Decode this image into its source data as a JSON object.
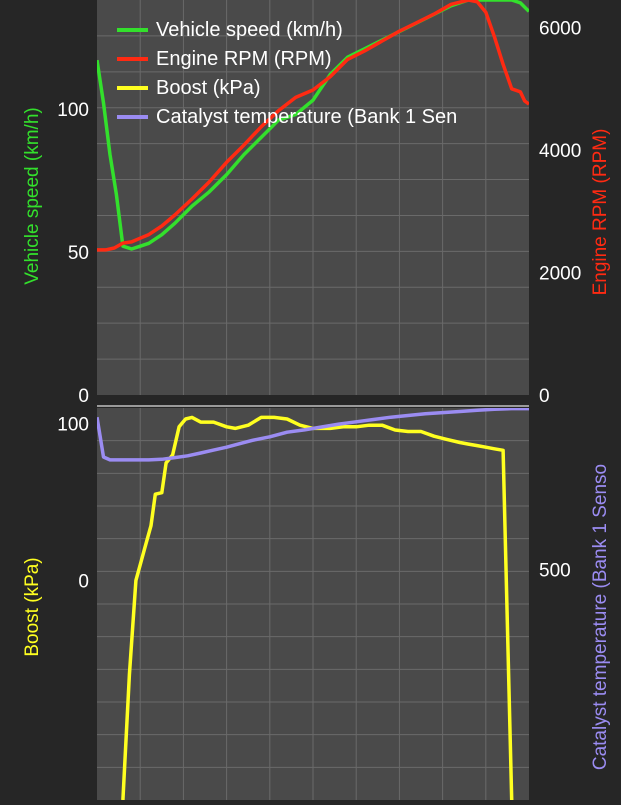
{
  "colors": {
    "background": "#262626",
    "plot_bg": "#4a4a4a",
    "grid": "#6a6a6a",
    "speed": "#33e02c",
    "rpm": "#ff2a12",
    "boost": "#ffff20",
    "cat_temp": "#9b8cf2",
    "text": "#ffffff"
  },
  "chart_data": [
    {
      "type": "line",
      "panel": "top",
      "grid": true,
      "legend_placement": "top-left",
      "legend": [
        {
          "label": "Vehicle speed (km/h)",
          "color": "#33e02c"
        },
        {
          "label": "Engine RPM (RPM)",
          "color": "#ff2a12"
        },
        {
          "label": "Boost (kPa)",
          "color": "#ffff20"
        },
        {
          "label": "Catalyst temperature (Bank 1 Sen",
          "color": "#9b8cf2"
        }
      ],
      "xlim": [
        0,
        100
      ],
      "left_axis": {
        "label": "Vehicle speed (km/h)",
        "ylim": [
          0,
          138
        ],
        "ticks": [
          0,
          50,
          100
        ],
        "tick_labels": [
          "0",
          "50",
          "100"
        ]
      },
      "right_axis": {
        "label": "Engine RPM (RPM)",
        "ylim": [
          0,
          6450
        ],
        "ticks": [
          0,
          2000,
          4000,
          6000
        ],
        "tick_labels": [
          "0",
          "2000",
          "4000",
          "6000"
        ]
      },
      "series": [
        {
          "name": "Vehicle speed (km/h)",
          "axis": "left",
          "color": "#33e02c",
          "x": [
            0,
            1.5,
            3,
            4.5,
            6,
            8,
            10,
            12,
            15,
            18,
            22,
            26,
            30,
            34,
            38,
            42,
            46,
            50,
            54,
            58,
            62,
            66,
            70,
            74,
            78,
            82,
            86,
            90,
            92,
            94,
            96,
            98,
            100
          ],
          "y": [
            117,
            102,
            84,
            70,
            52,
            51,
            52,
            53,
            56,
            60,
            66,
            71,
            77,
            84,
            90,
            96,
            98,
            103,
            112,
            118,
            121,
            124,
            127,
            130,
            133,
            136,
            138,
            138,
            138,
            138,
            138,
            137,
            134
          ]
        },
        {
          "name": "Engine RPM (RPM)",
          "axis": "right",
          "color": "#ff2a12",
          "x": [
            0,
            2,
            4,
            6,
            8,
            10,
            12,
            15,
            18,
            22,
            26,
            30,
            34,
            38,
            42,
            46,
            50,
            54,
            58,
            62,
            66,
            70,
            74,
            78,
            82,
            86,
            88,
            90,
            92,
            94,
            96,
            98,
            99,
            100
          ],
          "y": [
            2370,
            2370,
            2400,
            2480,
            2500,
            2560,
            2620,
            2760,
            2940,
            3200,
            3480,
            3800,
            4080,
            4380,
            4640,
            4860,
            4980,
            5200,
            5480,
            5620,
            5780,
            5940,
            6080,
            6220,
            6380,
            6450,
            6420,
            6250,
            5850,
            5400,
            5000,
            4950,
            4800,
            4750
          ]
        }
      ]
    },
    {
      "type": "line",
      "panel": "bottom",
      "grid": true,
      "xlim": [
        0,
        100
      ],
      "left_axis": {
        "label": "Boost (kPa)",
        "ylim": [
          -140,
          110
        ],
        "ticks": [
          0,
          100
        ],
        "tick_labels": [
          "0",
          "100"
        ]
      },
      "right_axis": {
        "label": "Catalyst temperature (Bank 1 Senso",
        "ylim": [
          900,
          220
        ],
        "ticks": [
          500
        ],
        "tick_labels": [
          "500"
        ]
      },
      "series": [
        {
          "name": "Boost (kPa)",
          "axis": "left",
          "color": "#ffff20",
          "x": [
            6,
            7.5,
            9,
            11,
            12.5,
            13.5,
            15,
            16,
            17.5,
            19,
            20.5,
            22,
            24,
            27,
            30,
            32,
            35,
            38,
            41,
            44,
            47,
            50,
            54,
            57,
            60,
            63,
            66,
            69,
            72,
            75,
            78,
            81,
            84,
            86,
            88,
            90,
            92,
            94,
            96
          ],
          "y": [
            -140,
            -60,
            0,
            20,
            35,
            55,
            56,
            75,
            80,
            98,
            103,
            104,
            101,
            101,
            98,
            97,
            99,
            104,
            104,
            103,
            99,
            97,
            97,
            98,
            98,
            99,
            99,
            96,
            95,
            95,
            92,
            90,
            88,
            87,
            86,
            85,
            84,
            83,
            -140
          ]
        },
        {
          "name": "Catalyst temperature (Bank 1 Senso",
          "axis": "right",
          "color": "#9b8cf2",
          "x": [
            0,
            1.5,
            3,
            5,
            8,
            12,
            15,
            18,
            21,
            24,
            27,
            30,
            33,
            36,
            40,
            44,
            48,
            52,
            56,
            60,
            64,
            68,
            72,
            76,
            80,
            84,
            88,
            92,
            96,
            100
          ],
          "y": [
            236,
            305,
            310,
            310,
            310,
            310,
            309,
            306,
            303,
            298,
            293,
            288,
            282,
            276,
            270,
            262,
            258,
            253,
            248,
            244,
            240,
            236,
            233,
            230,
            228,
            226,
            224,
            222,
            221,
            221
          ]
        }
      ]
    }
  ]
}
